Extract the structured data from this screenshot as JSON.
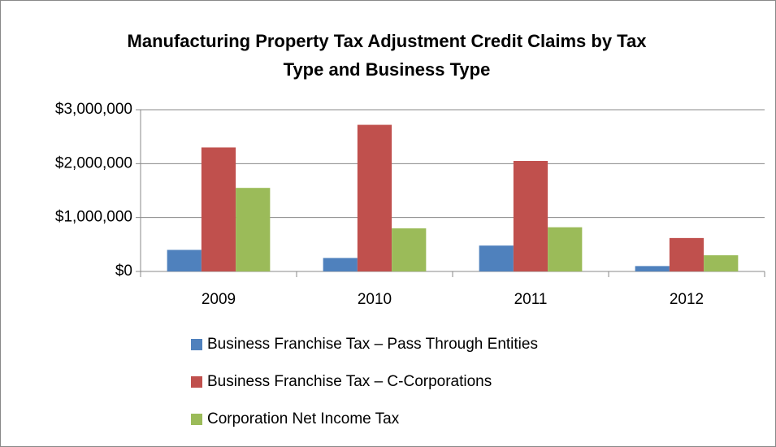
{
  "chart_data": {
    "type": "bar",
    "title": [
      "Manufacturing Property Tax Adjustment Credit Claims by Tax",
      "Type and Business Type"
    ],
    "categories": [
      "2009",
      "2010",
      "2011",
      "2012"
    ],
    "series": [
      {
        "name": "Business Franchise Tax – Pass Through Entities",
        "color": "#4f81bd",
        "values": [
          400000,
          250000,
          480000,
          100000
        ]
      },
      {
        "name": "Business Franchise Tax – C-Corporations",
        "color": "#c0504d",
        "values": [
          2300000,
          2720000,
          2050000,
          620000
        ]
      },
      {
        "name": "Corporation Net Income Tax",
        "color": "#9bbb59",
        "values": [
          1550000,
          800000,
          820000,
          300000
        ]
      }
    ],
    "ylim": [
      0,
      3000000
    ],
    "yticks": [
      {
        "value": 0,
        "label": "$0"
      },
      {
        "value": 1000000,
        "label": "$1,000,000"
      },
      {
        "value": 2000000,
        "label": "$2,000,000"
      },
      {
        "value": 3000000,
        "label": "$3,000,000"
      }
    ],
    "grid": true,
    "legend": "bottom"
  }
}
